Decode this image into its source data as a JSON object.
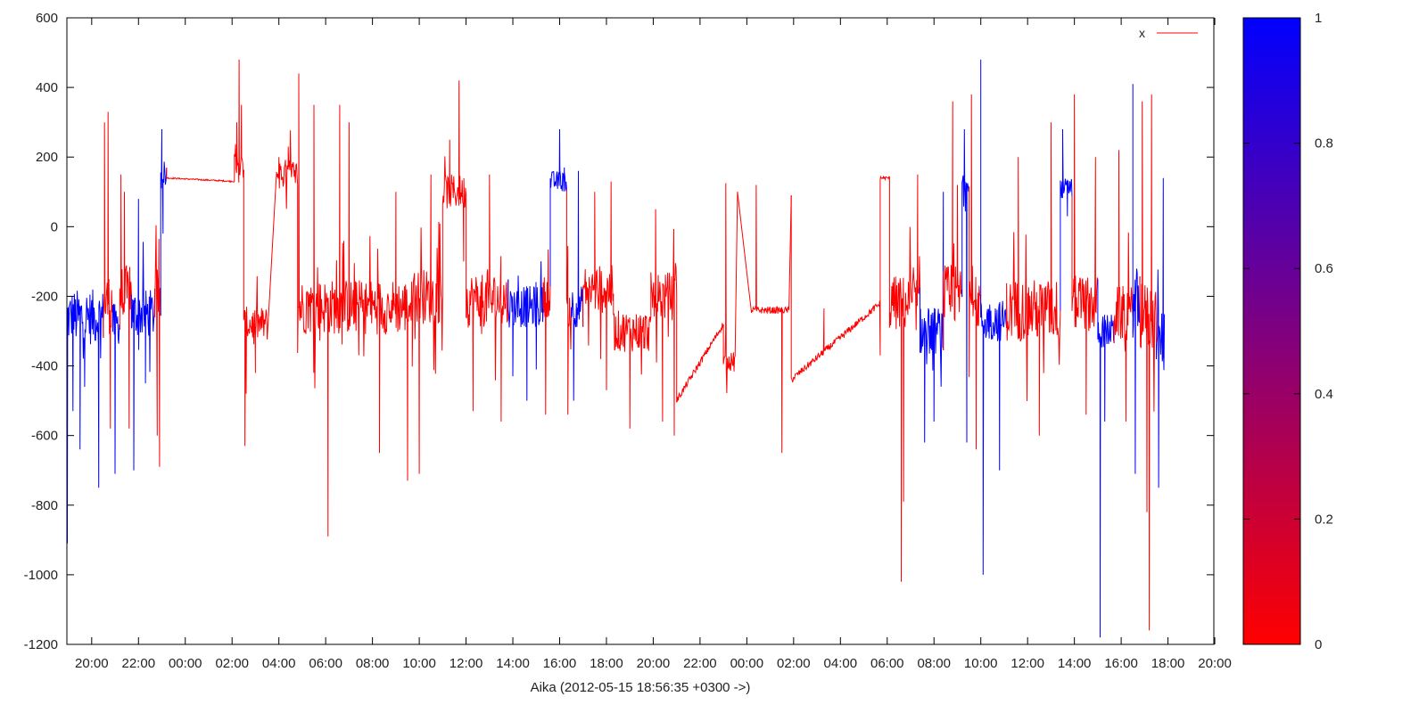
{
  "chart_data": {
    "type": "line",
    "title": "",
    "xlabel": "Aika (2012-05-15 18:56:35 +0300 ->)",
    "ylabel": "",
    "ylim": [
      -1200,
      600
    ],
    "xlim_hours": [
      18.94,
      67.96
    ],
    "y_ticks": [
      600,
      400,
      200,
      0,
      -200,
      -400,
      -600,
      -800,
      -1000,
      -1200
    ],
    "x_ticks": [
      {
        "h": 20,
        "label": "20:00"
      },
      {
        "h": 22,
        "label": "22:00"
      },
      {
        "h": 24,
        "label": "00:00"
      },
      {
        "h": 26,
        "label": "02:00"
      },
      {
        "h": 28,
        "label": "04:00"
      },
      {
        "h": 30,
        "label": "06:00"
      },
      {
        "h": 32,
        "label": "08:00"
      },
      {
        "h": 34,
        "label": "10:00"
      },
      {
        "h": 36,
        "label": "12:00"
      },
      {
        "h": 38,
        "label": "14:00"
      },
      {
        "h": 40,
        "label": "16:00"
      },
      {
        "h": 42,
        "label": "18:00"
      },
      {
        "h": 44,
        "label": "20:00"
      },
      {
        "h": 46,
        "label": "22:00"
      },
      {
        "h": 48,
        "label": "00:00"
      },
      {
        "h": 50,
        "label": "02:00"
      },
      {
        "h": 52,
        "label": "04:00"
      },
      {
        "h": 54,
        "label": "06:00"
      },
      {
        "h": 56,
        "label": "08:00"
      },
      {
        "h": 58,
        "label": "10:00"
      },
      {
        "h": 60,
        "label": "12:00"
      },
      {
        "h": 62,
        "label": "14:00"
      },
      {
        "h": 64,
        "label": "16:00"
      },
      {
        "h": 66,
        "label": "18:00"
      },
      {
        "h": 68,
        "label": "20:00"
      }
    ],
    "grid": false,
    "legend": {
      "position": "top-right",
      "entries": [
        {
          "name": "x",
          "color": "#ff0000"
        }
      ]
    },
    "colorbar": {
      "min": 0,
      "max": 1,
      "ticks": [
        {
          "v": 0,
          "label": "0"
        },
        {
          "v": 0.2,
          "label": "0.2"
        },
        {
          "v": 0.4,
          "label": "0.4"
        },
        {
          "v": 0.6,
          "label": "0.6"
        },
        {
          "v": 0.8,
          "label": "0.8"
        },
        {
          "v": 1,
          "label": "1"
        }
      ],
      "color_low": "#ff0000",
      "color_high": "#0000ff"
    },
    "series": [
      {
        "name": "x",
        "description_of_color": "color follows colorbar value (0 red, 1 blue)",
        "segments": [
          {
            "start": 18.95,
            "end": 20.5,
            "base": -260,
            "spread": 80,
            "color": 1,
            "spikes": [
              [
                18.96,
                -910
              ],
              [
                19.2,
                -530
              ],
              [
                19.5,
                -640
              ],
              [
                19.7,
                -460
              ],
              [
                20.3,
                -750
              ]
            ]
          },
          {
            "start": 20.5,
            "end": 20.9,
            "base": -220,
            "spread": 90,
            "color": 0,
            "spikes": [
              [
                20.55,
                300
              ],
              [
                20.7,
                330
              ],
              [
                20.8,
                -580
              ]
            ]
          },
          {
            "start": 20.9,
            "end": 21.2,
            "base": -280,
            "spread": 60,
            "color": 1,
            "spikes": [
              [
                21.0,
                -710
              ]
            ]
          },
          {
            "start": 21.2,
            "end": 21.7,
            "base": -200,
            "spread": 90,
            "color": 0,
            "spikes": [
              [
                21.25,
                150
              ],
              [
                21.4,
                100
              ],
              [
                21.6,
                -580
              ]
            ]
          },
          {
            "start": 21.7,
            "end": 22.7,
            "base": -250,
            "spread": 70,
            "color": 1,
            "spikes": [
              [
                21.8,
                -700
              ],
              [
                22.0,
                80
              ],
              [
                22.3,
                -450
              ]
            ]
          },
          {
            "start": 22.7,
            "end": 22.95,
            "base": -200,
            "spread": 80,
            "color": 0,
            "spikes": [
              [
                22.8,
                -600
              ],
              [
                22.9,
                -690
              ]
            ]
          },
          {
            "start": 22.95,
            "end": 23.2,
            "base": 150,
            "spread": 30,
            "color": 1,
            "spikes": [
              [
                23.0,
                280
              ],
              [
                23.05,
                -20
              ]
            ]
          },
          {
            "start": 23.2,
            "end": 26.1,
            "base": 140,
            "spread": 2,
            "color": 0,
            "linear_to": 130,
            "spikes": []
          },
          {
            "start": 26.1,
            "end": 26.5,
            "base": 170,
            "spread": 40,
            "color": 0,
            "spikes": [
              [
                26.2,
                300
              ],
              [
                26.3,
                480
              ],
              [
                26.4,
                350
              ]
            ]
          },
          {
            "start": 26.5,
            "end": 27.5,
            "base": -280,
            "spread": 50,
            "color": 0,
            "spikes": [
              [
                26.55,
                -630
              ],
              [
                26.6,
                -480
              ],
              [
                27.0,
                -420
              ]
            ]
          },
          {
            "start": 27.9,
            "end": 28.8,
            "base": 150,
            "spread": 45,
            "color": 0,
            "spikes": [
              [
                28.0,
                200
              ],
              [
                28.4,
                230
              ]
            ]
          },
          {
            "start": 28.8,
            "end": 33.7,
            "base": -230,
            "spread": 80,
            "color": 0,
            "spikes": [
              [
                28.85,
                440
              ],
              [
                29.5,
                350
              ],
              [
                30.1,
                -890
              ],
              [
                30.6,
                350
              ],
              [
                31.0,
                300
              ],
              [
                32.3,
                -650
              ],
              [
                33.0,
                100
              ],
              [
                33.5,
                -730
              ]
            ]
          },
          {
            "start": 33.7,
            "end": 35.0,
            "base": -200,
            "spread": 80,
            "color": 0,
            "spikes": [
              [
                34.0,
                -710
              ],
              [
                34.5,
                150
              ],
              [
                34.8,
                -200
              ]
            ]
          },
          {
            "start": 35.0,
            "end": 36.0,
            "base": 100,
            "spread": 50,
            "color": 0,
            "spikes": [
              [
                35.3,
                250
              ],
              [
                35.7,
                420
              ],
              [
                35.9,
                -100
              ]
            ]
          },
          {
            "start": 36.0,
            "end": 37.8,
            "base": -210,
            "spread": 80,
            "color": 0,
            "spikes": [
              [
                36.3,
                -530
              ],
              [
                37.0,
                150
              ],
              [
                37.5,
                -560
              ]
            ]
          },
          {
            "start": 37.8,
            "end": 39.3,
            "base": -230,
            "spread": 60,
            "color": 1,
            "spikes": [
              [
                38.0,
                -430
              ],
              [
                38.6,
                -500
              ],
              [
                39.0,
                -410
              ]
            ]
          },
          {
            "start": 39.3,
            "end": 39.6,
            "base": -200,
            "spread": 60,
            "color": 0,
            "spikes": [
              [
                39.4,
                -540
              ]
            ]
          },
          {
            "start": 39.6,
            "end": 40.3,
            "base": 130,
            "spread": 30,
            "color": 1,
            "spikes": [
              [
                40.0,
                280
              ],
              [
                40.2,
                170
              ]
            ]
          },
          {
            "start": 40.3,
            "end": 40.5,
            "base": -230,
            "spread": 60,
            "color": 0,
            "spikes": [
              [
                40.35,
                -540
              ]
            ]
          },
          {
            "start": 40.5,
            "end": 41.0,
            "base": -230,
            "spread": 60,
            "color": 1,
            "spikes": [
              [
                40.6,
                -500
              ],
              [
                40.8,
                160
              ]
            ]
          },
          {
            "start": 41.0,
            "end": 42.3,
            "base": -180,
            "spread": 70,
            "color": 0,
            "spikes": [
              [
                41.5,
                100
              ],
              [
                42.0,
                -470
              ],
              [
                42.2,
                130
              ]
            ]
          },
          {
            "start": 42.3,
            "end": 43.9,
            "base": -300,
            "spread": 60,
            "color": 0,
            "spikes": [
              [
                43.0,
                -580
              ],
              [
                43.5,
                -420
              ],
              [
                43.6,
                -350
              ]
            ]
          },
          {
            "start": 43.9,
            "end": 45.0,
            "base": -200,
            "spread": 70,
            "color": 0,
            "spikes": [
              [
                44.1,
                50
              ],
              [
                44.4,
                -560
              ],
              [
                44.9,
                -600
              ]
            ]
          },
          {
            "start": 45.0,
            "end": 47.0,
            "base": -500,
            "spread": 10,
            "color": 0,
            "linear_to": -280,
            "spikes": []
          },
          {
            "start": 47.0,
            "end": 47.5,
            "base": -390,
            "spread": 30,
            "color": 0,
            "spikes": [
              [
                47.1,
                125
              ],
              [
                47.6,
                100
              ]
            ]
          },
          {
            "start": 48.2,
            "end": 49.8,
            "base": -240,
            "spread": 10,
            "color": 0,
            "spikes": [
              [
                48.4,
                120
              ],
              [
                49.5,
                -650
              ],
              [
                49.9,
                90
              ]
            ]
          },
          {
            "start": 49.9,
            "end": 53.7,
            "base": -440,
            "spread": 10,
            "color": 0,
            "linear_to": -220,
            "spikes": [
              [
                51.3,
                -235
              ],
              [
                53.7,
                -370
              ]
            ]
          },
          {
            "start": 53.7,
            "end": 54.1,
            "base": 140,
            "spread": 5,
            "color": 0,
            "spikes": []
          },
          {
            "start": 54.1,
            "end": 55.4,
            "base": -220,
            "spread": 80,
            "color": 0,
            "spikes": [
              [
                54.7,
                -790
              ],
              [
                54.6,
                -1020
              ],
              [
                55.3,
                150
              ]
            ]
          },
          {
            "start": 55.4,
            "end": 56.4,
            "base": -300,
            "spread": 70,
            "color": 1,
            "spikes": [
              [
                55.6,
                -620
              ],
              [
                56.0,
                -560
              ],
              [
                56.4,
                100
              ]
            ]
          },
          {
            "start": 56.4,
            "end": 57.2,
            "base": -200,
            "spread": 90,
            "color": 0,
            "spikes": [
              [
                56.8,
                360
              ],
              [
                57.0,
                120
              ]
            ]
          },
          {
            "start": 57.2,
            "end": 57.5,
            "base": 130,
            "spread": 30,
            "color": 1,
            "spikes": [
              [
                57.3,
                280
              ],
              [
                57.4,
                -620
              ]
            ]
          },
          {
            "start": 57.5,
            "end": 58.0,
            "base": -220,
            "spread": 80,
            "color": 0,
            "spikes": [
              [
                57.6,
                380
              ],
              [
                57.8,
                -640
              ]
            ]
          },
          {
            "start": 58.0,
            "end": 59.1,
            "base": -270,
            "spread": 60,
            "color": 1,
            "spikes": [
              [
                58.0,
                480
              ],
              [
                58.1,
                -1000
              ],
              [
                58.8,
                -700
              ]
            ]
          },
          {
            "start": 59.1,
            "end": 61.4,
            "base": -240,
            "spread": 90,
            "color": 0,
            "spikes": [
              [
                59.6,
                200
              ],
              [
                60.5,
                -600
              ],
              [
                61.0,
                300
              ]
            ]
          },
          {
            "start": 61.4,
            "end": 61.9,
            "base": 110,
            "spread": 30,
            "color": 1,
            "spikes": [
              [
                61.5,
                280
              ],
              [
                61.7,
                30
              ]
            ]
          },
          {
            "start": 61.9,
            "end": 63.0,
            "base": -220,
            "spread": 80,
            "color": 0,
            "spikes": [
              [
                62.0,
                380
              ],
              [
                62.5,
                -540
              ],
              [
                62.9,
                200
              ]
            ]
          },
          {
            "start": 63.0,
            "end": 63.7,
            "base": -300,
            "spread": 50,
            "color": 1,
            "spikes": [
              [
                63.1,
                -1180
              ],
              [
                63.3,
                -560
              ]
            ]
          },
          {
            "start": 63.7,
            "end": 64.5,
            "base": -250,
            "spread": 80,
            "color": 0,
            "spikes": [
              [
                63.9,
                220
              ],
              [
                64.2,
                -560
              ]
            ]
          },
          {
            "start": 64.5,
            "end": 64.8,
            "base": -220,
            "spread": 100,
            "color": 1,
            "spikes": [
              [
                64.5,
                410
              ],
              [
                64.6,
                -710
              ]
            ]
          },
          {
            "start": 64.8,
            "end": 65.5,
            "base": -260,
            "spread": 100,
            "color": 0,
            "spikes": [
              [
                64.9,
                360
              ],
              [
                65.1,
                -820
              ],
              [
                65.2,
                -1160
              ],
              [
                65.3,
                380
              ]
            ]
          },
          {
            "start": 65.5,
            "end": 65.85,
            "base": -320,
            "spread": 80,
            "color": 1,
            "spikes": [
              [
                65.6,
                -750
              ],
              [
                65.8,
                140
              ]
            ]
          }
        ]
      }
    ]
  }
}
